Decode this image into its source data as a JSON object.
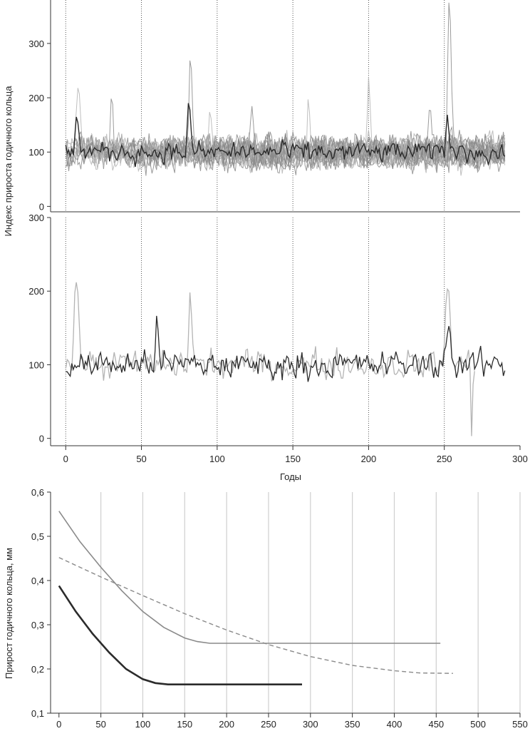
{
  "top_ylabel": "Индекс прироста годичного кольца",
  "top_xlabel": "Годы",
  "bottom_ylabel": "Прирост годичного кольца, мм",
  "colors": {
    "dark": "#2b2b2b",
    "mid": "#8a8a8a",
    "light": "#b4b4b4",
    "grid": "#cfcfcf",
    "axis": "#333333"
  },
  "chart_data": [
    {
      "type": "line",
      "panel": "top-upper",
      "ylim": [
        -10,
        380
      ],
      "xlim": [
        -10,
        300
      ],
      "yticks": [
        0,
        100,
        200,
        300
      ],
      "ytick_labels": [
        "0",
        "100",
        "200",
        "300"
      ],
      "vlines": [
        0,
        50,
        100,
        150,
        200,
        250
      ],
      "series": [
        {
          "role": "individual-series",
          "count": 20,
          "x_start": 0,
          "x_end": 290,
          "mean": 100,
          "range": [
            0,
            375
          ]
        },
        {
          "role": "mean-chronology",
          "x_start": 0,
          "x_end": 290,
          "mean": 100,
          "range": [
            40,
            190
          ]
        }
      ]
    },
    {
      "type": "line",
      "panel": "top-lower",
      "ylim": [
        -10,
        300
      ],
      "xlim": [
        -10,
        300
      ],
      "yticks": [
        0,
        100,
        200,
        300
      ],
      "ytick_labels": [
        "0",
        "100",
        "200",
        "300"
      ],
      "xticks": [
        0,
        50,
        100,
        150,
        200,
        250,
        300
      ],
      "xtick_labels": [
        "0",
        "50",
        "100",
        "150",
        "200",
        "250",
        "300"
      ],
      "vlines": [
        0,
        50,
        100,
        150,
        200,
        250
      ],
      "series": [
        {
          "role": "chronology-a",
          "x_start": 0,
          "x_end": 290,
          "mean": 100,
          "range": [
            35,
            175
          ]
        },
        {
          "role": "chronology-b",
          "x_start": 0,
          "x_end": 270,
          "mean": 100,
          "range": [
            0,
            212
          ]
        }
      ]
    },
    {
      "type": "line",
      "panel": "bottom",
      "ylim": [
        0.1,
        0.6
      ],
      "xlim": [
        -10,
        550
      ],
      "yticks": [
        0.1,
        0.2,
        0.3,
        0.4,
        0.5,
        0.6
      ],
      "ytick_labels": [
        "0,1",
        "0,2",
        "0,3",
        "0,4",
        "0,5",
        "0,6"
      ],
      "xticks": [
        0,
        50,
        100,
        150,
        200,
        250,
        300,
        350,
        400,
        450,
        500,
        550
      ],
      "xtick_labels": [
        "0",
        "50",
        "100",
        "150",
        "200",
        "250",
        "300",
        "350",
        "400",
        "450",
        "500",
        "550"
      ],
      "grid": "vertical",
      "series": [
        {
          "style": "solid-thick-dark",
          "x": [
            0,
            20,
            40,
            60,
            80,
            100,
            115,
            130,
            150,
            200,
            250,
            290
          ],
          "y": [
            0.388,
            0.33,
            0.28,
            0.237,
            0.2,
            0.177,
            0.168,
            0.165,
            0.165,
            0.165,
            0.165,
            0.165
          ]
        },
        {
          "style": "solid-gray",
          "x": [
            0,
            25,
            50,
            75,
            100,
            125,
            150,
            165,
            180,
            200,
            300,
            400,
            455
          ],
          "y": [
            0.557,
            0.488,
            0.43,
            0.377,
            0.33,
            0.294,
            0.27,
            0.262,
            0.258,
            0.258,
            0.258,
            0.258,
            0.258
          ]
        },
        {
          "style": "dashed-gray",
          "x": [
            0,
            50,
            100,
            150,
            200,
            250,
            300,
            350,
            400,
            430,
            470
          ],
          "y": [
            0.452,
            0.408,
            0.366,
            0.325,
            0.288,
            0.255,
            0.228,
            0.208,
            0.196,
            0.191,
            0.19
          ]
        }
      ]
    }
  ]
}
